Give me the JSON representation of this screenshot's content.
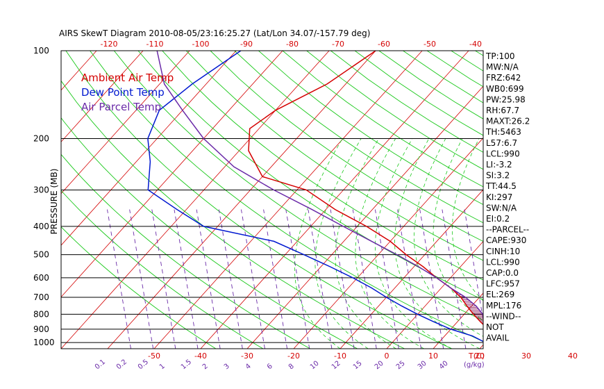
{
  "chart_data": {
    "type": "skew-t",
    "title": "AIRS SkewT Diagram 2010-08-05/23:16:25.27 (Lat/Lon 34.07/-157.79 deg)",
    "ylabel": "PRESSURE (MB)",
    "xlabel_top_unit": "",
    "xlabel_bottom_unit": "T(C)",
    "mixing_ratio_unit": "(g/kg)",
    "pressure_levels": [
      100,
      200,
      300,
      400,
      500,
      600,
      700,
      800,
      900,
      1000
    ],
    "top_temp_ticks": [
      -120,
      -110,
      -100,
      -90,
      -80,
      -70,
      -60,
      -50,
      -40
    ],
    "bottom_temp_ticks": [
      -50,
      -40,
      -30,
      -20,
      -10,
      0,
      10,
      20,
      30,
      40
    ],
    "mixing_ratio_labels": [
      "0.1",
      "0.2",
      "0.5",
      "1",
      "1.5",
      "2",
      "3",
      "4",
      "6",
      "8",
      "10",
      "12",
      "15",
      "20",
      "25",
      "30",
      "40"
    ],
    "legend": [
      {
        "label": "Ambient Air Temp",
        "color": "#d40000"
      },
      {
        "label": "Dew Point Temp",
        "color": "#0018d0"
      },
      {
        "label": "Air Parcel Temp",
        "color": "#6a2aa8"
      }
    ],
    "series": [
      {
        "name": "Ambient Air Temp",
        "color": "#d40000",
        "points": [
          [
            100,
            -60
          ],
          [
            130,
            -64
          ],
          [
            160,
            -70
          ],
          [
            185,
            -72
          ],
          [
            220,
            -68
          ],
          [
            270,
            -60
          ],
          [
            300,
            -48
          ],
          [
            350,
            -38
          ],
          [
            400,
            -28
          ],
          [
            450,
            -20
          ],
          [
            500,
            -14
          ],
          [
            550,
            -8
          ],
          [
            600,
            -3
          ],
          [
            650,
            2
          ],
          [
            700,
            6
          ],
          [
            750,
            9
          ],
          [
            800,
            12
          ],
          [
            850,
            15
          ],
          [
            900,
            18
          ],
          [
            950,
            22
          ],
          [
            1000,
            25.5
          ]
        ]
      },
      {
        "name": "Dew Point Temp",
        "color": "#0018d0",
        "points": [
          [
            100,
            -89
          ],
          [
            130,
            -93
          ],
          [
            160,
            -95
          ],
          [
            200,
            -92
          ],
          [
            240,
            -87
          ],
          [
            300,
            -82
          ],
          [
            350,
            -72
          ],
          [
            400,
            -63
          ],
          [
            450,
            -45
          ],
          [
            500,
            -36
          ],
          [
            550,
            -28
          ],
          [
            600,
            -21
          ],
          [
            650,
            -15
          ],
          [
            700,
            -10
          ],
          [
            750,
            -5
          ],
          [
            800,
            0
          ],
          [
            850,
            5
          ],
          [
            900,
            10
          ],
          [
            950,
            16
          ],
          [
            1000,
            20
          ]
        ]
      },
      {
        "name": "Air Parcel Temp",
        "color": "#6a2aa8",
        "points": [
          [
            100,
            -107
          ],
          [
            130,
            -99
          ],
          [
            160,
            -90
          ],
          [
            200,
            -80
          ],
          [
            250,
            -68
          ],
          [
            300,
            -55
          ],
          [
            350,
            -43
          ],
          [
            400,
            -33
          ],
          [
            450,
            -24
          ],
          [
            500,
            -16
          ],
          [
            550,
            -9
          ],
          [
            600,
            -3
          ],
          [
            650,
            2
          ],
          [
            700,
            7
          ],
          [
            750,
            11
          ],
          [
            800,
            14
          ],
          [
            850,
            17
          ],
          [
            900,
            20
          ],
          [
            950,
            23
          ],
          [
            990,
            25.5
          ]
        ]
      }
    ],
    "grid": true
  },
  "indices": [
    "TP:100",
    "MW:N/A",
    "FRZ:642",
    "WB0:699",
    "PW:25.98",
    "RH:67.7",
    "MAXT:26.2",
    "TH:5463",
    "L57:6.7",
    "LCL:990",
    "LI:-3.2",
    "SI:3.2",
    "TT:44.5",
    "KI:297",
    "SW:N/A",
    "EI:0.2",
    "--PARCEL--",
    "CAPE:930",
    "CINH:10",
    "LCL:990",
    "CAP:0.0",
    "LFC:957",
    "EL:269",
    "MPL:176",
    "--WIND--",
    "NOT",
    "AVAIL"
  ]
}
